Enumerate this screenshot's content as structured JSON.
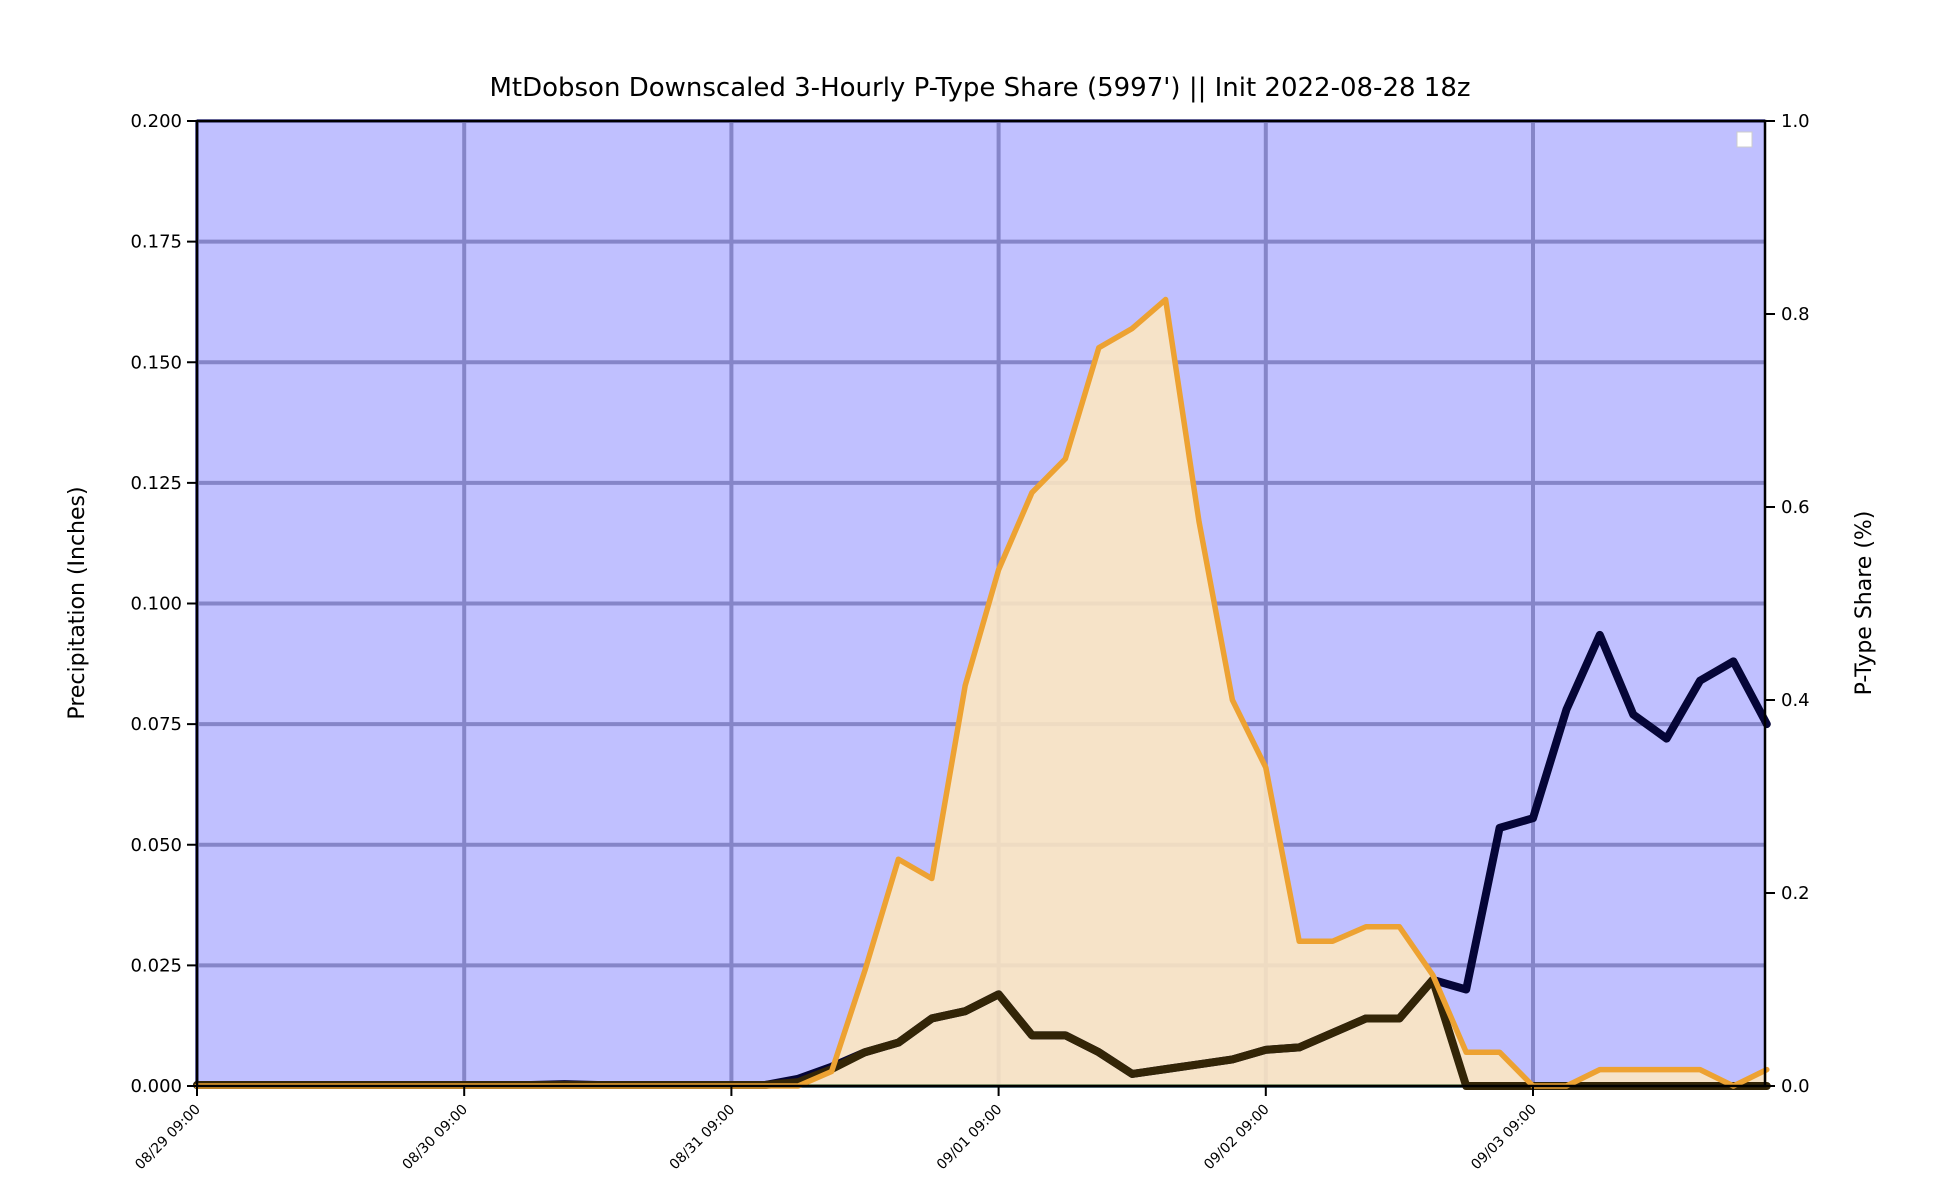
{
  "chart_data": {
    "type": "area",
    "title": "MtDobson Downscaled 3-Hourly P-Type Share (5997') || Init 2022-08-28 18z",
    "ylabel": "Precipitation (Inches)",
    "y2label": "P-Type Share (%)",
    "ylim": [
      0,
      0.2
    ],
    "y2lim": [
      0,
      1.0
    ],
    "yticks": [
      "0.000",
      "0.025",
      "0.050",
      "0.075",
      "0.100",
      "0.125",
      "0.150",
      "0.175",
      "0.200"
    ],
    "y2ticks": [
      "0.0",
      "0.2",
      "0.4",
      "0.6",
      "0.8",
      "1.0"
    ],
    "xticks": [
      "08/29 09:00",
      "08/30 09:00",
      "08/31 09:00",
      "09/01 09:00",
      "09/02 09:00",
      "09/03 09:00"
    ],
    "x_step_hours": 3,
    "x_start": "08/29 09:00",
    "grid": true,
    "legend": "top-right",
    "colors": {
      "background": "#c0c0ff",
      "grid": "#8585c8",
      "rain_fill": "#fde7c0",
      "rain_line": "#eda232",
      "total_precip": "#050537",
      "rain_precip": "#332507",
      "snow_share": "#2c8a2c"
    },
    "series": [
      {
        "axis": "left",
        "color": "#050537",
        "values": [
          0.0002,
          0.0002,
          0.0002,
          0.0002,
          0.0002,
          0.0002,
          0.0002,
          0.0002,
          0.0002,
          0.0002,
          0.0002,
          0.0004,
          0.0002,
          0.0002,
          0.0002,
          0.0002,
          0.0002,
          0.0002,
          0.0015,
          0.004,
          0.007,
          0.009,
          0.014,
          0.0155,
          0.019,
          0.0105,
          0.0105,
          0.007,
          0.0025,
          0.0035,
          0.0045,
          0.0055,
          0.0075,
          0.008,
          0.011,
          0.014,
          0.014,
          0.022,
          0.02,
          0.0535,
          0.0555,
          0.078,
          0.0935,
          0.077,
          0.072,
          0.084,
          0.088,
          0.075
        ]
      },
      {
        "axis": "left",
        "color": "#332507",
        "values": [
          0.0002,
          0.0002,
          0.0002,
          0.0002,
          0.0002,
          0.0002,
          0.0002,
          0.0002,
          0.0002,
          0.0002,
          0.0002,
          0.0002,
          0.0002,
          0.0002,
          0.0002,
          0.0002,
          0.0002,
          0.0002,
          0.0008,
          0.0035,
          0.007,
          0.009,
          0.014,
          0.0155,
          0.019,
          0.0105,
          0.0105,
          0.007,
          0.0025,
          0.0035,
          0.0045,
          0.0055,
          0.0075,
          0.008,
          0.011,
          0.014,
          0.014,
          0.022,
          0.0,
          0.0,
          0.0,
          0.0,
          0.0,
          0.0,
          0.0,
          0.0,
          0.0,
          0.0
        ]
      },
      {
        "axis": "right",
        "color": "#eda232",
        "values": [
          0,
          0,
          0,
          0,
          0,
          0,
          0,
          0,
          0,
          0,
          0,
          0,
          0,
          0,
          0,
          0,
          0,
          0,
          0,
          0.015,
          0.12,
          0.235,
          0.215,
          0.415,
          0.535,
          0.615,
          0.65,
          0.765,
          0.785,
          0.815,
          0.585,
          0.4,
          0.33,
          0.15,
          0.15,
          0.165,
          0.165,
          0.115,
          0.035,
          0.035,
          0,
          0,
          0.017,
          0.017,
          0.017,
          0.017,
          0,
          0.017
        ]
      },
      {
        "axis": "right",
        "color": "#2c8a2c",
        "values": [
          0,
          0,
          0,
          0,
          0,
          0,
          0,
          0,
          0,
          0,
          0,
          0,
          0,
          0,
          0,
          0,
          0,
          0,
          0,
          0,
          0,
          0,
          0,
          0,
          0,
          0,
          0,
          0,
          0,
          0,
          0,
          0,
          0,
          0,
          0,
          0,
          0,
          0,
          0,
          0,
          0,
          0,
          0,
          0,
          0,
          0,
          0,
          0
        ]
      }
    ]
  }
}
